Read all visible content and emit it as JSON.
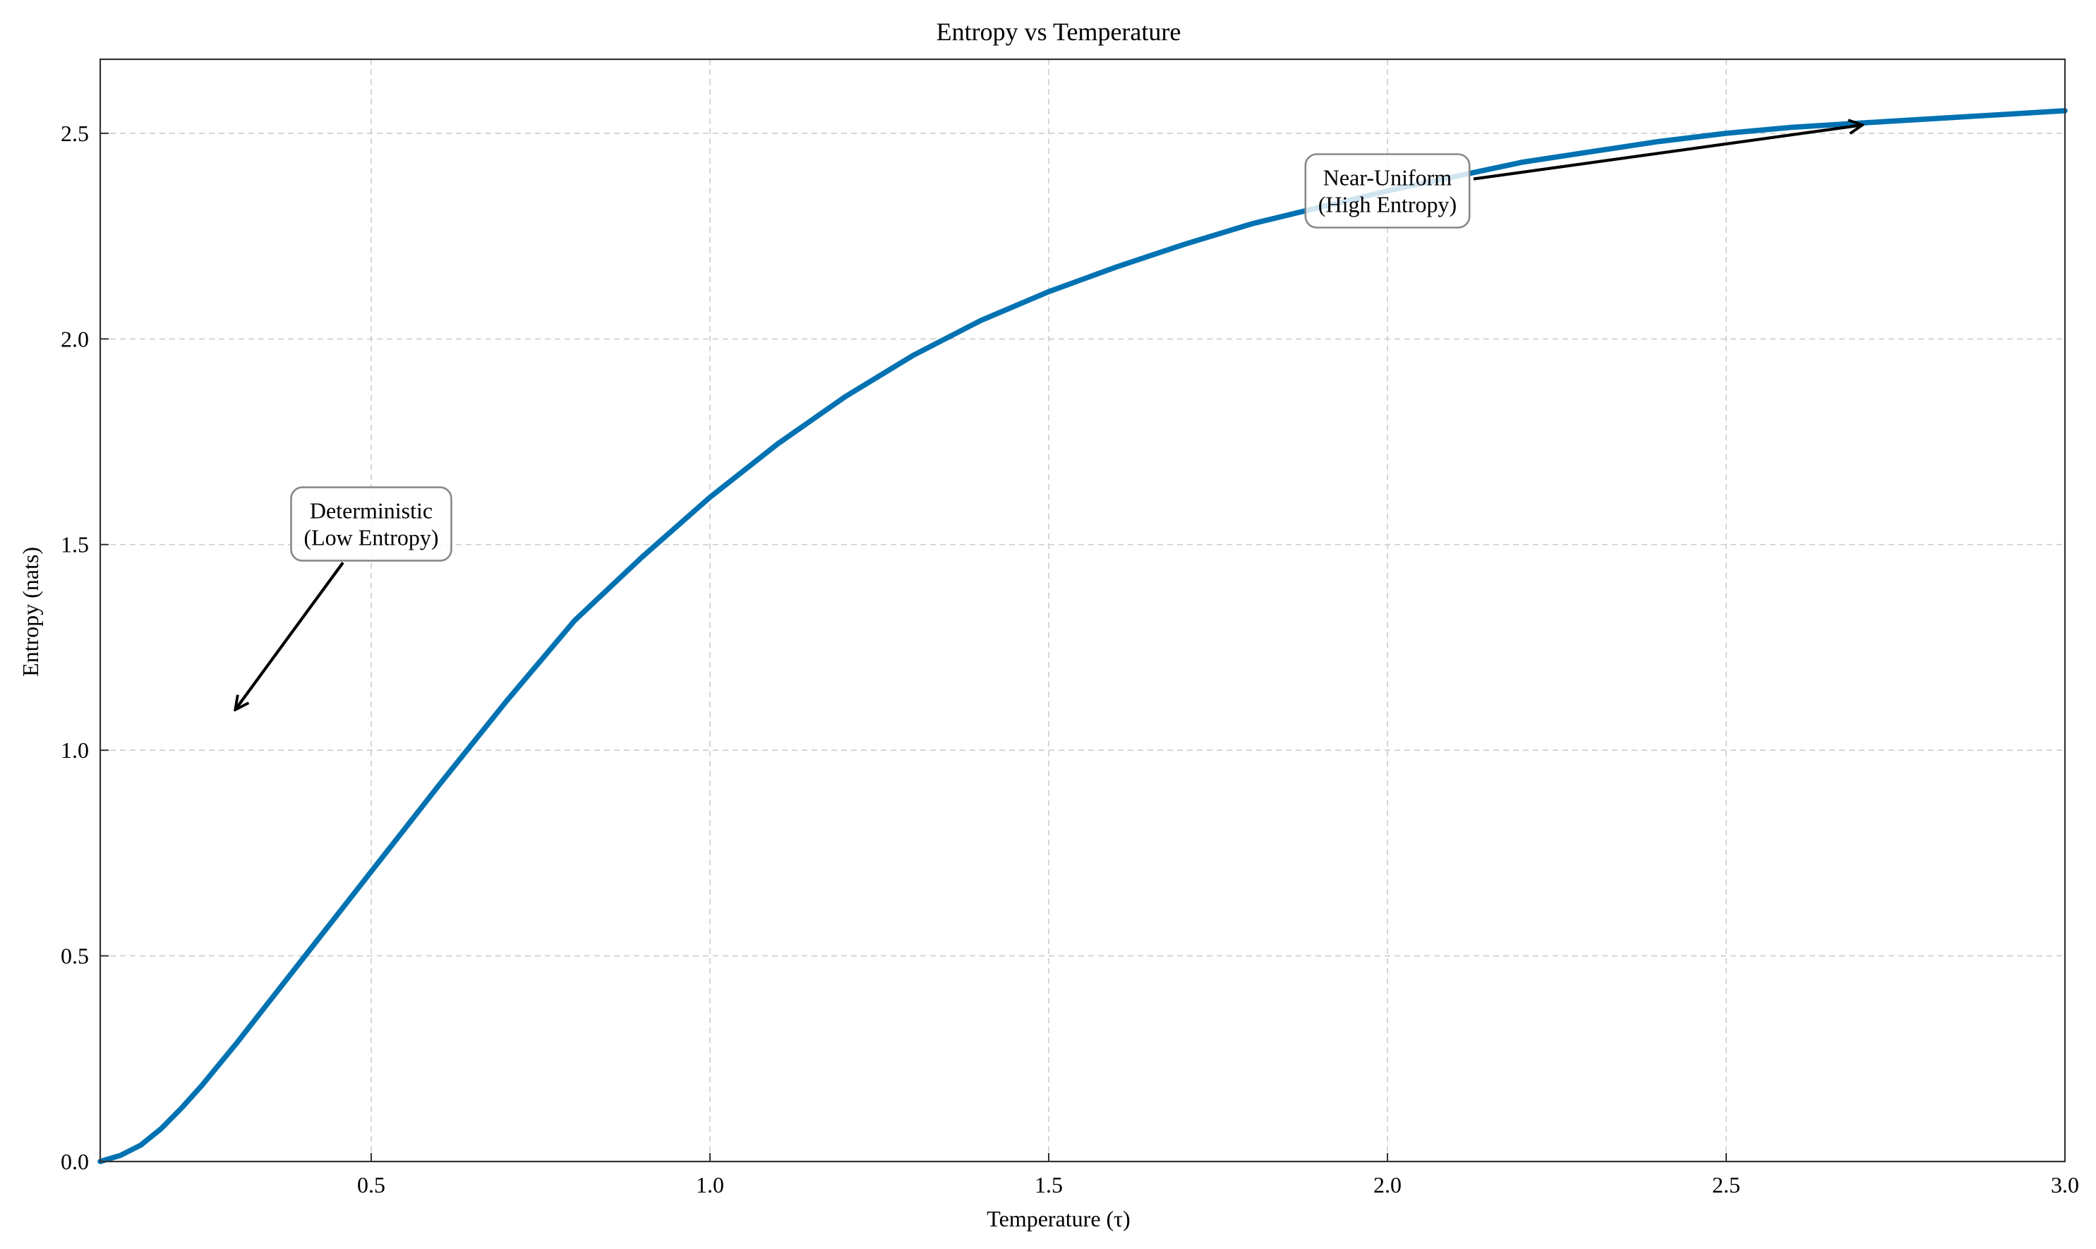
{
  "chart_data": {
    "type": "line",
    "title": "Entropy vs Temperature",
    "xlabel": "Temperature (τ)",
    "ylabel": "Entropy (nats)",
    "xlim": [
      0.1,
      3.0
    ],
    "ylim": [
      0.0,
      2.68
    ],
    "xticks": [
      0.5,
      1.0,
      1.5,
      2.0,
      2.5,
      3.0
    ],
    "xtick_labels": [
      "0.5",
      "1.0",
      "1.5",
      "2.0",
      "2.5",
      "3.0"
    ],
    "yticks": [
      0.0,
      0.5,
      1.0,
      1.5,
      2.0,
      2.5
    ],
    "ytick_labels": [
      "0.0",
      "0.5",
      "1.0",
      "1.5",
      "2.0",
      "2.5"
    ],
    "grid": true,
    "series": [
      {
        "color": "#0072b2",
        "x": [
          0.1,
          0.13,
          0.16,
          0.19,
          0.22,
          0.25,
          0.3,
          0.35,
          0.4,
          0.45,
          0.5,
          0.55,
          0.6,
          0.7,
          0.8,
          0.9,
          1.0,
          1.1,
          1.2,
          1.3,
          1.4,
          1.5,
          1.6,
          1.7,
          1.8,
          1.9,
          2.0,
          2.1,
          2.2,
          2.3,
          2.4,
          2.5,
          2.6,
          2.7,
          2.8,
          2.9,
          3.0
        ],
        "y": [
          0.0,
          0.015,
          0.04,
          0.08,
          0.13,
          0.185,
          0.285,
          0.39,
          0.495,
          0.6,
          0.705,
          0.81,
          0.915,
          1.12,
          1.315,
          1.47,
          1.615,
          1.745,
          1.86,
          1.96,
          2.045,
          2.115,
          2.175,
          2.23,
          2.28,
          2.32,
          2.36,
          2.395,
          2.43,
          2.455,
          2.48,
          2.5,
          2.515,
          2.525,
          2.535,
          2.545,
          2.555
        ]
      }
    ],
    "annotations": [
      {
        "lines": [
          "Deterministic",
          "(Low Entropy)"
        ],
        "text_x": 0.5,
        "text_y": 1.55,
        "arrow_x": 0.3,
        "arrow_y": 1.1
      },
      {
        "lines": [
          "Near-Uniform",
          "(High Entropy)"
        ],
        "text_x": 2.0,
        "text_y": 2.36,
        "arrow_x": 2.7,
        "arrow_y": 2.52
      }
    ]
  }
}
